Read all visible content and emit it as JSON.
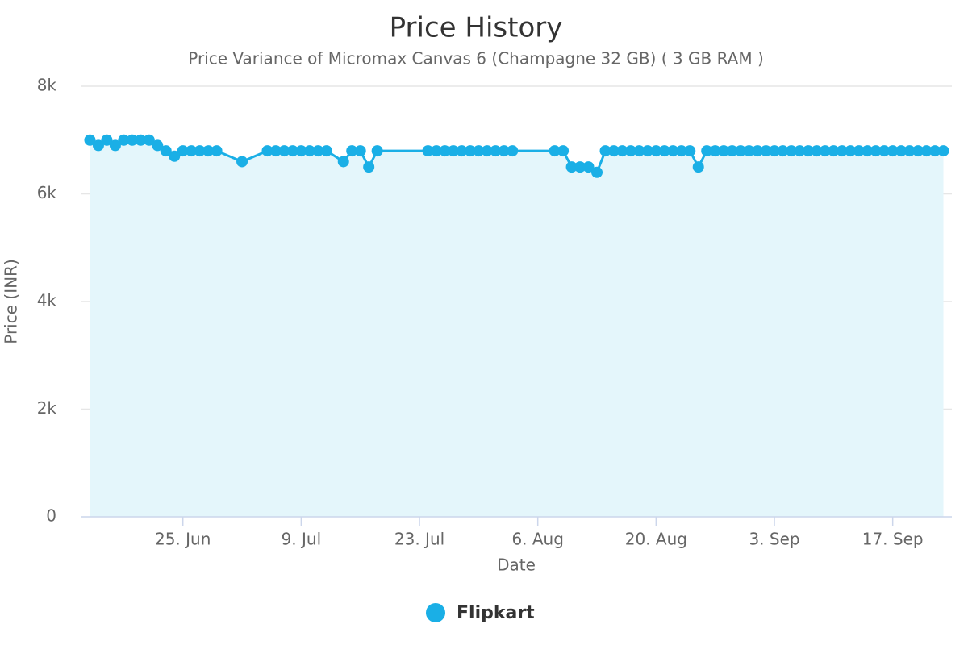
{
  "chart_data": {
    "type": "area",
    "title": "Price History",
    "subtitle": "Price Variance of Micromax Canvas 6 (Champagne 32 GB) ( 3 GB RAM )",
    "x_label": "Date",
    "y_label": "Price (INR)",
    "xlim": [
      "13. Jun",
      "24. Sep"
    ],
    "xticks": [
      "25. Jun",
      "9. Jul",
      "23. Jul",
      "6. Aug",
      "20. Aug",
      "3. Sep",
      "17. Sep"
    ],
    "ylim": [
      0,
      8000
    ],
    "yticks": [
      0,
      {
        "value": 2000,
        "label": "2k"
      },
      {
        "value": 4000,
        "label": "4k"
      },
      {
        "value": 6000,
        "label": "6k"
      },
      {
        "value": 8000,
        "label": "8k"
      }
    ],
    "grid": true,
    "x": [
      "14. Jun",
      "15. Jun",
      "16. Jun",
      "17. Jun",
      "18. Jun",
      "19. Jun",
      "20. Jun",
      "21. Jun",
      "22. Jun",
      "23. Jun",
      "24. Jun",
      "25. Jun",
      "26. Jun",
      "27. Jun",
      "28. Jun",
      "29. Jun",
      "2. Jul",
      "5. Jul",
      "6. Jul",
      "7. Jul",
      "8. Jul",
      "9. Jul",
      "10. Jul",
      "11. Jul",
      "12. Jul",
      "14. Jul",
      "15. Jul",
      "16. Jul",
      "17. Jul",
      "18. Jul",
      "24. Jul",
      "25. Jul",
      "26. Jul",
      "27. Jul",
      "28. Jul",
      "29. Jul",
      "30. Jul",
      "31. Jul",
      "1. Aug",
      "2. Aug",
      "3. Aug",
      "8. Aug",
      "9. Aug",
      "10. Aug",
      "11. Aug",
      "12. Aug",
      "13. Aug",
      "14. Aug",
      "15. Aug",
      "16. Aug",
      "17. Aug",
      "18. Aug",
      "19. Aug",
      "20. Aug",
      "21. Aug",
      "22. Aug",
      "23. Aug",
      "24. Aug",
      "25. Aug",
      "26. Aug",
      "27. Aug",
      "28. Aug",
      "29. Aug",
      "30. Aug",
      "31. Aug",
      "1. Sep",
      "2. Sep",
      "3. Sep",
      "4. Sep",
      "5. Sep",
      "6. Sep",
      "7. Sep",
      "8. Sep",
      "9. Sep",
      "10. Sep",
      "11. Sep",
      "12. Sep",
      "13. Sep",
      "14. Sep",
      "15. Sep",
      "16. Sep",
      "17. Sep",
      "18. Sep",
      "19. Sep",
      "20. Sep",
      "21. Sep",
      "22. Sep",
      "23. Sep"
    ],
    "series": [
      {
        "name": "Flipkart",
        "color": "#1aafe6",
        "fill": "#e4f6fb",
        "values": [
          7000,
          6900,
          7000,
          6900,
          7000,
          7000,
          7000,
          7000,
          6900,
          6800,
          6700,
          6800,
          6800,
          6800,
          6800,
          6800,
          6600,
          6800,
          6800,
          6800,
          6800,
          6800,
          6800,
          6800,
          6800,
          6600,
          6800,
          6800,
          6500,
          6800,
          6800,
          6800,
          6800,
          6800,
          6800,
          6800,
          6800,
          6800,
          6800,
          6800,
          6800,
          6800,
          6800,
          6500,
          6500,
          6500,
          6400,
          6800,
          6800,
          6800,
          6800,
          6800,
          6800,
          6800,
          6800,
          6800,
          6800,
          6800,
          6500,
          6800,
          6800,
          6800,
          6800,
          6800,
          6800,
          6800,
          6800,
          6800,
          6800,
          6800,
          6800,
          6800,
          6800,
          6800,
          6800,
          6800,
          6800,
          6800,
          6800,
          6800,
          6800,
          6800,
          6800,
          6800,
          6800,
          6800,
          6800,
          6800
        ]
      }
    ]
  }
}
